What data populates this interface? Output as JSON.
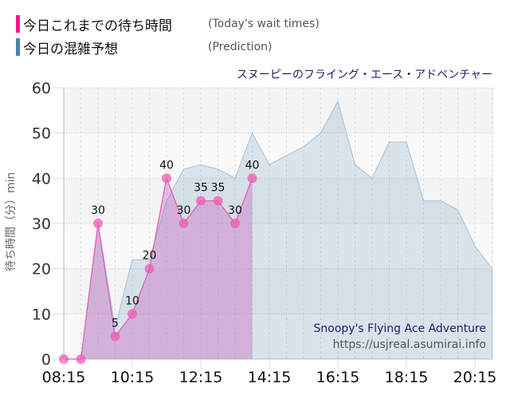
{
  "legend": [
    {
      "label_jp": "今日これまでの待ち時間",
      "label_en": "(Today's wait times)",
      "color": "#ff1493"
    },
    {
      "label_jp": "今日の混雑予想",
      "label_en": "(Prediction)",
      "color": "#4682b4"
    }
  ],
  "header": {
    "title_jp": "スヌーピーのフライング・エース・アドベンチャー"
  },
  "axis": {
    "ylabel": "待ち時間（分）min"
  },
  "watermark": {
    "title": "Snoopy's Flying Ace Adventure",
    "url": "https://usjreal.asumirai.info"
  },
  "chart_data": {
    "type": "area",
    "title": "スヌーピーのフライング・エース・アドベンチャー",
    "xlabel": "",
    "ylabel": "待ち時間（分）min",
    "ylim": [
      0,
      60
    ],
    "yticks": [
      0,
      10,
      20,
      30,
      40,
      50,
      60
    ],
    "xticks": [
      "08:15",
      "10:15",
      "12:15",
      "14:15",
      "16:15",
      "18:15",
      "20:15"
    ],
    "grid": true,
    "legend_position": "top-left",
    "series": [
      {
        "name": "今日これまでの待ち時間 (Today's wait times)",
        "color": "#ff1493",
        "x": [
          "08:15",
          "08:45",
          "09:15",
          "09:45",
          "10:15",
          "10:45",
          "11:15",
          "11:45",
          "12:15",
          "12:45",
          "13:15",
          "13:45"
        ],
        "values": [
          0,
          0,
          30,
          5,
          10,
          20,
          40,
          30,
          35,
          35,
          30,
          40
        ]
      },
      {
        "name": "今日の混雑予想 (Prediction)",
        "color": "#4682b4",
        "x": [
          "08:45",
          "09:15",
          "09:45",
          "10:15",
          "10:45",
          "11:15",
          "11:45",
          "12:15",
          "12:45",
          "13:15",
          "13:45",
          "14:15",
          "14:45",
          "15:15",
          "15:45",
          "16:15",
          "16:45",
          "17:15",
          "17:45",
          "18:15",
          "18:45",
          "19:15",
          "19:45",
          "20:15",
          "20:45"
        ],
        "values": [
          0,
          30,
          7,
          22,
          22,
          35,
          42,
          43,
          42,
          40,
          50,
          43,
          45,
          47,
          50,
          57,
          43,
          40,
          48,
          48,
          35,
          35,
          33,
          25,
          20
        ]
      }
    ]
  }
}
